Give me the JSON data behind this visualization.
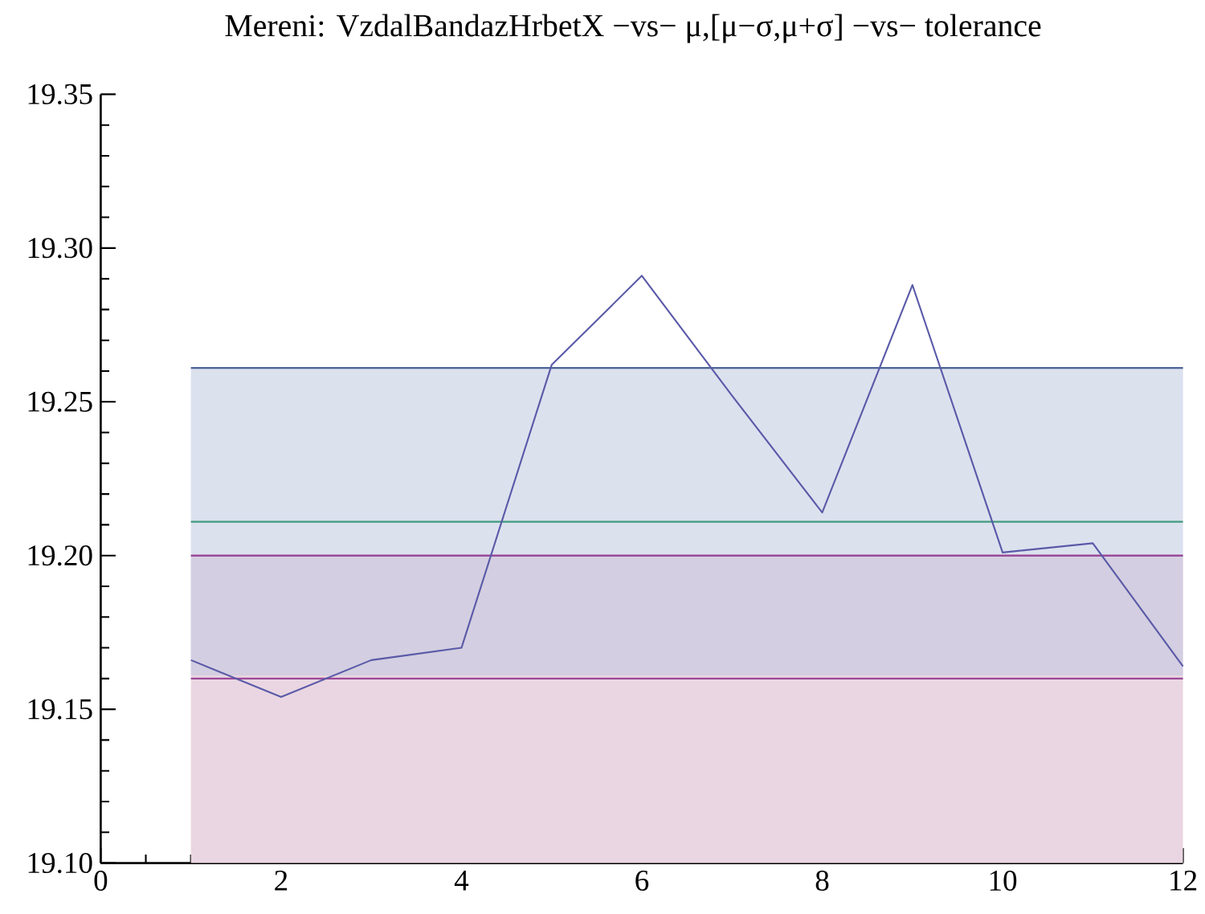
{
  "chart_data": {
    "type": "line",
    "title": "Mereni: VzdalBandazHrbetX −vs− μ,[μ−σ,μ+σ] −vs− tolerance",
    "x": [
      1,
      2,
      3,
      4,
      5,
      6,
      7,
      8,
      9,
      10,
      11,
      12
    ],
    "series": [
      {
        "color": "#5a5aa8",
        "values": [
          19.166,
          19.154,
          19.166,
          19.17,
          19.262,
          19.291,
          19.252,
          19.214,
          19.288,
          19.201,
          19.204,
          19.164
        ]
      }
    ],
    "xlim": [
      0,
      12
    ],
    "xticks": [
      0,
      2,
      4,
      6,
      8,
      10,
      12
    ],
    "ylim": [
      19.1,
      19.35
    ],
    "yticks": [
      {
        "value": 19.1,
        "label": "19.10"
      },
      {
        "value": 19.15,
        "label": "19.15"
      },
      {
        "value": 19.2,
        "label": "19.20"
      },
      {
        "value": 19.25,
        "label": "19.25"
      },
      {
        "value": 19.3,
        "label": "19.30"
      },
      {
        "value": 19.35,
        "label": "19.35"
      }
    ],
    "bands": [
      {
        "axis": "y",
        "from": 19.1,
        "to": 19.2,
        "color": "#ead6e2"
      },
      {
        "axis": "y",
        "from": 19.161,
        "to": 19.261,
        "color": "#bfc8e0"
      }
    ],
    "ref_lines": [
      {
        "axis": "y",
        "value": 19.261,
        "color": "#4a6494"
      },
      {
        "axis": "y",
        "value": 19.211,
        "color": "#3f9a7c"
      },
      {
        "axis": "y",
        "value": 19.2,
        "color": "#9a4a98"
      },
      {
        "axis": "y",
        "value": 19.16,
        "color": "#9a4a98"
      }
    ],
    "grid": false,
    "legend": false,
    "marker": "none",
    "line_style": "solid"
  }
}
